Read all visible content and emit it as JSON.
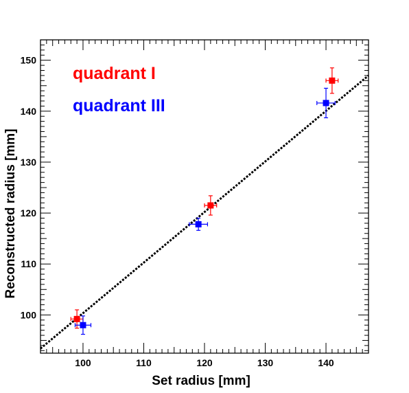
{
  "chart_data": {
    "type": "scatter",
    "xlabel": "Set radius [mm]",
    "ylabel": "Reconstructed radius [mm]",
    "xlim": [
      93,
      147
    ],
    "ylim": [
      92.5,
      154
    ],
    "x_ticks": [
      100,
      110,
      120,
      130,
      140
    ],
    "y_ticks": [
      100,
      110,
      120,
      130,
      140,
      150
    ],
    "x_tick_labels": [
      "100",
      "110",
      "120",
      "130",
      "140"
    ],
    "y_tick_labels": [
      "100",
      "110",
      "120",
      "130",
      "140",
      "150"
    ],
    "grid": false,
    "legend_placement": "top-left",
    "series": [
      {
        "name": "quadrant I",
        "color": "#ff0000",
        "marker": "square",
        "points": [
          {
            "x": 99,
            "y": 99.2,
            "xerr": 1.0,
            "yerr": 1.8
          },
          {
            "x": 121,
            "y": 121.5,
            "xerr": 1.0,
            "yerr": 1.9
          },
          {
            "x": 141,
            "y": 146.0,
            "xerr": 1.0,
            "yerr": 2.5
          }
        ]
      },
      {
        "name": "quadrant III",
        "color": "#0000ff",
        "marker": "square",
        "points": [
          {
            "x": 100,
            "y": 98.0,
            "xerr": 1.3,
            "yerr": 1.8
          },
          {
            "x": 119,
            "y": 117.8,
            "xerr": 1.5,
            "yerr": 1.2
          },
          {
            "x": 140,
            "y": 141.6,
            "xerr": 1.5,
            "yerr": 2.9
          }
        ]
      }
    ],
    "fit_line": {
      "style": "dashed",
      "color": "#000000",
      "x": [
        93,
        147
      ],
      "y": [
        93.4,
        147.0
      ]
    }
  }
}
